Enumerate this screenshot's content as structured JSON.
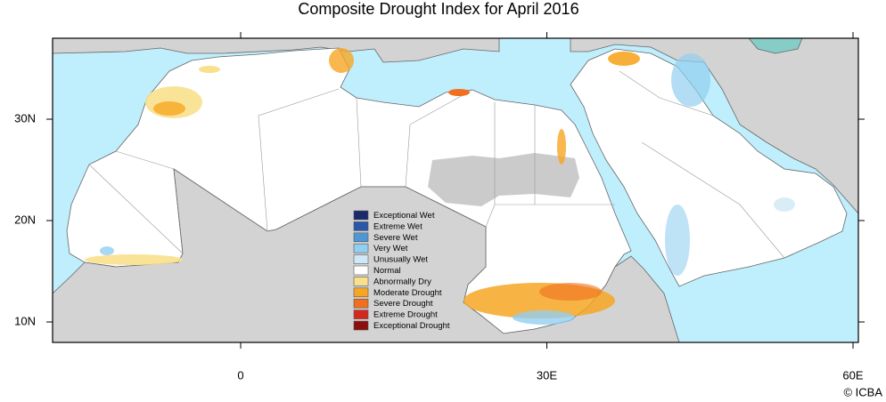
{
  "title": "Composite Drought Index for April 2016",
  "axes": {
    "lon_ticks": [
      0,
      {
        "value": 30,
        "label": "30E"
      },
      {
        "value": 60,
        "label": "60E"
      }
    ],
    "lat_ticks": [
      {
        "value": 30,
        "label": "30N"
      },
      {
        "value": 20,
        "label": "20N"
      },
      {
        "value": 10,
        "label": "10N"
      }
    ]
  },
  "legend": [
    {
      "label": "Exceptional Wet",
      "color": "#1b2a6b"
    },
    {
      "label": "Extreme Wet",
      "color": "#2a58a8"
    },
    {
      "label": "Severe Wet",
      "color": "#4f97d3"
    },
    {
      "label": "Very Wet",
      "color": "#92cef0"
    },
    {
      "label": "Unusually Wet",
      "color": "#cfe8f5"
    },
    {
      "label": "Normal",
      "color": "#ffffff"
    },
    {
      "label": "Abnormally Dry",
      "color": "#f8e08c"
    },
    {
      "label": "Moderate Drought",
      "color": "#f6a623"
    },
    {
      "label": "Severe Drought",
      "color": "#f07020"
    },
    {
      "label": "Extreme Drought",
      "color": "#d4281f"
    },
    {
      "label": "Exceptional Drought",
      "color": "#8b0e0e"
    }
  ],
  "credit": "© ICBA"
}
